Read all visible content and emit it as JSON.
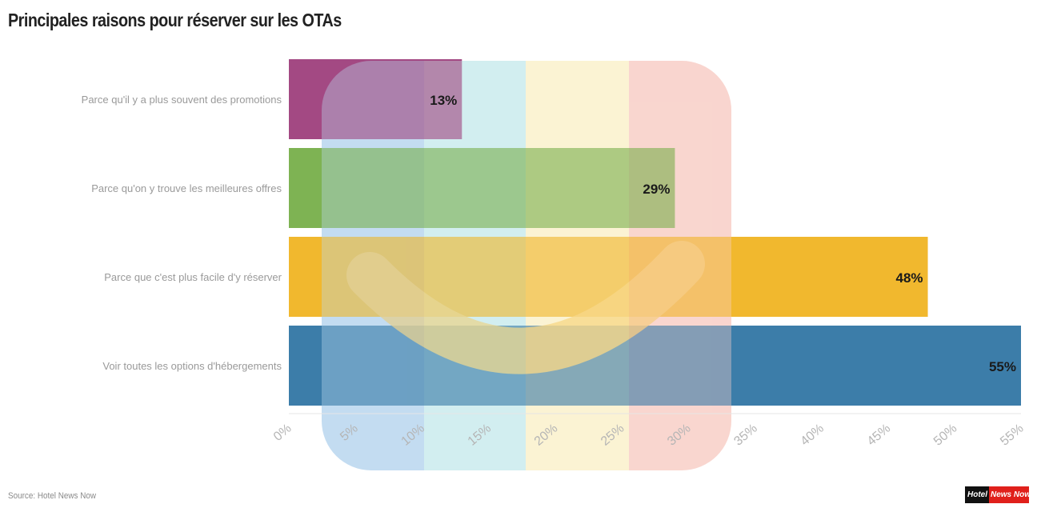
{
  "chart_data": {
    "type": "bar",
    "orientation": "horizontal",
    "title": "Principales raisons pour réserver sur les OTAs",
    "categories": [
      "Parce qu'il y a plus souvent des promotions",
      "Parce qu'on y trouve les meilleures offres",
      "Parce que c'est plus facile d'y réserver",
      "Voir toutes les options d'hébergements"
    ],
    "values": [
      13,
      29,
      48,
      55
    ],
    "value_labels": [
      "13%",
      "29%",
      "48%",
      "55%"
    ],
    "colors": [
      "#9b3a78",
      "#73ad44",
      "#f0b21c",
      "#2b72a2"
    ],
    "xlim": [
      0,
      55
    ],
    "xticks": [
      0,
      5,
      10,
      15,
      20,
      25,
      30,
      35,
      40,
      45,
      50,
      55
    ],
    "xtick_labels": [
      "0%",
      "5%",
      "10%",
      "15%",
      "20%",
      "25%",
      "30%",
      "35%",
      "40%",
      "45%",
      "50%",
      "55%"
    ],
    "grid": false,
    "legend": "none"
  },
  "source": "Source: Hotel News Now",
  "logo": {
    "part1": "Hotel",
    "part2": "News Now"
  }
}
